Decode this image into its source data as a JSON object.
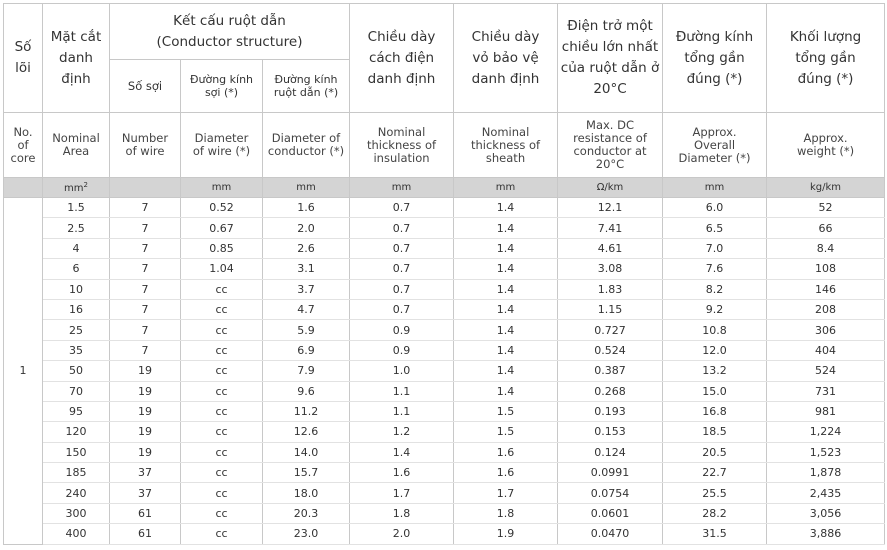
{
  "header": {
    "so_loi": "Số lõi",
    "mat_cat": "Mặt cắt danh định",
    "ket_cau": "Kết cấu ruột dẫn (Conductor structure)",
    "so_soi": "Số sợi",
    "duong_kinh_soi": "Đường kính sợi (*)",
    "duong_kinh_ruot": "Đường kính ruột dẫn (*)",
    "day_cach_dien": "Chiều dày cách điện danh định",
    "day_vo": "Chiều dày vỏ bảo vệ danh định",
    "dien_tro": "Điện trở một chiều lớn nhất của ruột dẫn ở 20°C",
    "duong_kinh_tong": "Đường kính tổng gần đúng (*)",
    "khoi_luong": "Khối lượng tổng gần đúng (*)"
  },
  "header_en": {
    "no_core": "No. of core",
    "area": "Nominal Area",
    "num_wire": "Number of wire",
    "dia_wire": "Diameter of wire (*)",
    "dia_cond": "Diameter of conductor (*)",
    "thk_ins": "Nominal thickness of insulation",
    "thk_sheath": "Nominal thickness of sheath",
    "resistance": "Max. DC resistance of conductor at 20°C",
    "overall_dia": "Approx. Overall Diameter (*)",
    "weight": "Approx. weight (*)"
  },
  "units": {
    "area": "mm",
    "area_sup": "2",
    "dia_wire": "mm",
    "dia_cond": "mm",
    "thk_ins": "mm",
    "thk_sheath": "mm",
    "resistance": "Ω/km",
    "overall_dia": "mm",
    "weight": "kg/km"
  },
  "core_count": "1",
  "rows": [
    {
      "area": "1.5",
      "wires": "7",
      "dw": "0.52",
      "dc": "1.6",
      "ins": "0.7",
      "sh": "1.4",
      "res": "12.1",
      "od": "6.0",
      "wt": "52"
    },
    {
      "area": "2.5",
      "wires": "7",
      "dw": "0.67",
      "dc": "2.0",
      "ins": "0.7",
      "sh": "1.4",
      "res": "7.41",
      "od": "6.5",
      "wt": "66"
    },
    {
      "area": "4",
      "wires": "7",
      "dw": "0.85",
      "dc": "2.6",
      "ins": "0.7",
      "sh": "1.4",
      "res": "4.61",
      "od": "7.0",
      "wt": "8.4"
    },
    {
      "area": "6",
      "wires": "7",
      "dw": "1.04",
      "dc": "3.1",
      "ins": "0.7",
      "sh": "1.4",
      "res": "3.08",
      "od": "7.6",
      "wt": "108"
    },
    {
      "area": "10",
      "wires": "7",
      "dw": "cc",
      "dc": "3.7",
      "ins": "0.7",
      "sh": "1.4",
      "res": "1.83",
      "od": "8.2",
      "wt": "146"
    },
    {
      "area": "16",
      "wires": "7",
      "dw": "cc",
      "dc": "4.7",
      "ins": "0.7",
      "sh": "1.4",
      "res": "1.15",
      "od": "9.2",
      "wt": "208"
    },
    {
      "area": "25",
      "wires": "7",
      "dw": "cc",
      "dc": "5.9",
      "ins": "0.9",
      "sh": "1.4",
      "res": "0.727",
      "od": "10.8",
      "wt": "306"
    },
    {
      "area": "35",
      "wires": "7",
      "dw": "cc",
      "dc": "6.9",
      "ins": "0.9",
      "sh": "1.4",
      "res": "0.524",
      "od": "12.0",
      "wt": "404"
    },
    {
      "area": "50",
      "wires": "19",
      "dw": "cc",
      "dc": "7.9",
      "ins": "1.0",
      "sh": "1.4",
      "res": "0.387",
      "od": "13.2",
      "wt": "524"
    },
    {
      "area": "70",
      "wires": "19",
      "dw": "cc",
      "dc": "9.6",
      "ins": "1.1",
      "sh": "1.4",
      "res": "0.268",
      "od": "15.0",
      "wt": "731"
    },
    {
      "area": "95",
      "wires": "19",
      "dw": "cc",
      "dc": "11.2",
      "ins": "1.1",
      "sh": "1.5",
      "res": "0.193",
      "od": "16.8",
      "wt": "981"
    },
    {
      "area": "120",
      "wires": "19",
      "dw": "cc",
      "dc": "12.6",
      "ins": "1.2",
      "sh": "1.5",
      "res": "0.153",
      "od": "18.5",
      "wt": "1,224"
    },
    {
      "area": "150",
      "wires": "19",
      "dw": "cc",
      "dc": "14.0",
      "ins": "1.4",
      "sh": "1.6",
      "res": "0.124",
      "od": "20.5",
      "wt": "1,523"
    },
    {
      "area": "185",
      "wires": "37",
      "dw": "cc",
      "dc": "15.7",
      "ins": "1.6",
      "sh": "1.6",
      "res": "0.0991",
      "od": "22.7",
      "wt": "1,878"
    },
    {
      "area": "240",
      "wires": "37",
      "dw": "cc",
      "dc": "18.0",
      "ins": "1.7",
      "sh": "1.7",
      "res": "0.0754",
      "od": "25.5",
      "wt": "2,435"
    },
    {
      "area": "300",
      "wires": "61",
      "dw": "cc",
      "dc": "20.3",
      "ins": "1.8",
      "sh": "1.8",
      "res": "0.0601",
      "od": "28.2",
      "wt": "3,056"
    },
    {
      "area": "400",
      "wires": "61",
      "dw": "cc",
      "dc": "23.0",
      "ins": "2.0",
      "sh": "1.9",
      "res": "0.0470",
      "od": "31.5",
      "wt": "3,886"
    }
  ]
}
